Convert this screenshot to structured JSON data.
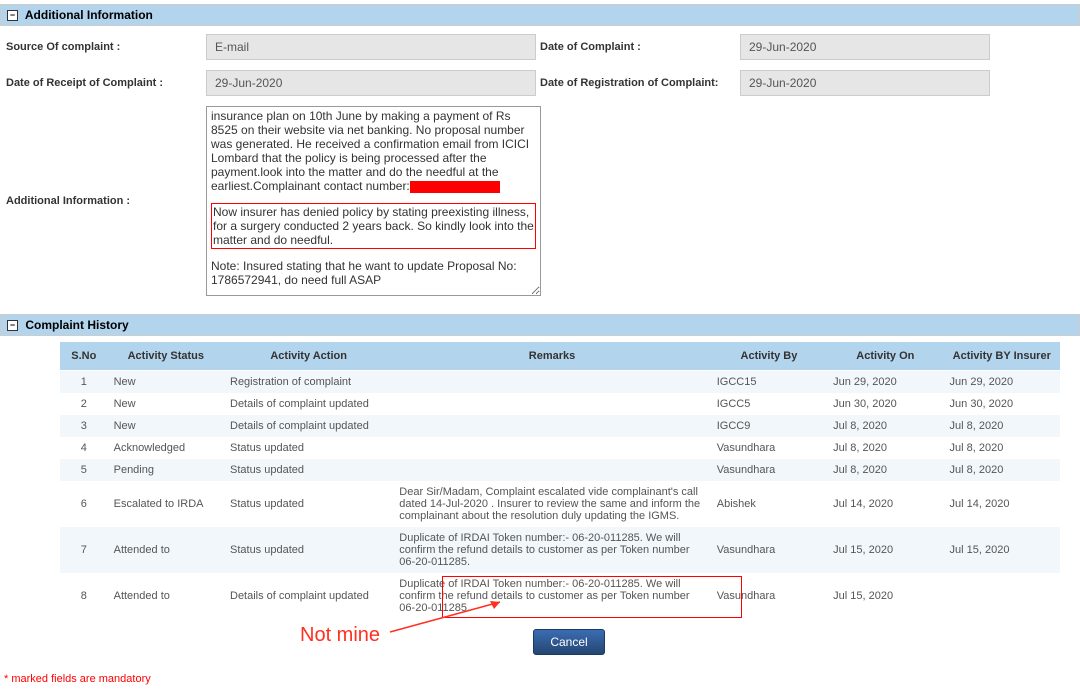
{
  "sections": {
    "additional_info_title": "Additional Information",
    "complaint_history_title": "Complaint History"
  },
  "form": {
    "source_label": "Source Of complaint :",
    "source_value": "E-mail",
    "date_complaint_label": "Date of Complaint :",
    "date_complaint_value": "29-Jun-2020",
    "date_receipt_label": "Date of Receipt of Complaint :",
    "date_receipt_value": "29-Jun-2020",
    "date_reg_label": "Date of Registration of Complaint:",
    "date_reg_value": "29-Jun-2020",
    "addl_info_label": "Additional Information :",
    "addl_text_p1": "insurance plan on 10th June by making a payment of Rs 8525 on their website via net banking. No proposal number was generated. He received a confirmation email from ICICI Lombard that the policy is being processed after the payment.look into the matter and do the needful at the earliest.Complainant contact number:",
    "addl_text_p2": "Now insurer has denied policy by stating preexisting illness, for a surgery conducted 2 years back. So kindly look into the matter and do needful.",
    "addl_text_p3": "Note: Insured stating that he want to update Proposal No: 1786572941, do need full ASAP"
  },
  "history": {
    "headers": {
      "sno": "S.No",
      "status": "Activity Status",
      "action": "Activity Action",
      "remarks": "Remarks",
      "by": "Activity By",
      "on": "Activity On",
      "by_insurer": "Activity BY Insurer"
    },
    "rows": [
      {
        "sno": "1",
        "status": "New",
        "action": "Registration of complaint",
        "remarks": "",
        "by": "IGCC15",
        "on": "Jun 29, 2020",
        "ins": "Jun 29, 2020"
      },
      {
        "sno": "2",
        "status": "New",
        "action": "Details of complaint updated",
        "remarks": "",
        "by": "IGCC5",
        "on": "Jun 30, 2020",
        "ins": "Jun 30, 2020"
      },
      {
        "sno": "3",
        "status": "New",
        "action": "Details of complaint updated",
        "remarks": "",
        "by": "IGCC9",
        "on": "Jul 8, 2020",
        "ins": "Jul 8, 2020"
      },
      {
        "sno": "4",
        "status": "Acknowledged",
        "action": "Status updated",
        "remarks": "",
        "by": "Vasundhara",
        "on": "Jul 8, 2020",
        "ins": "Jul 8, 2020"
      },
      {
        "sno": "5",
        "status": "Pending",
        "action": "Status updated",
        "remarks": "",
        "by": "Vasundhara",
        "on": "Jul 8, 2020",
        "ins": "Jul 8, 2020"
      },
      {
        "sno": "6",
        "status": "Escalated to IRDA",
        "action": "Status updated",
        "remarks": "Dear Sir/Madam, Complaint escalated vide complainant's call dated 14-Jul-2020 . Insurer to review the same and inform the complainant about the resolution duly updating the IGMS.",
        "by": "Abishek",
        "on": "Jul 14, 2020",
        "ins": "Jul 14, 2020"
      },
      {
        "sno": "7",
        "status": "Attended to",
        "action": "Status updated",
        "remarks": "Duplicate of IRDAI Token number:- 06-20-011285. We will confirm the refund details to customer as per Token number 06-20-011285.",
        "by": "Vasundhara",
        "on": "Jul 15, 2020",
        "ins": "Jul 15, 2020"
      },
      {
        "sno": "8",
        "status": "Attended to",
        "action": "Details of complaint updated",
        "remarks": "Duplicate of IRDAI Token number:- 06-20-011285. We will confirm the refund details to customer as per Token number 06-20-011285.",
        "by": "Vasundhara",
        "on": "Jul 15, 2020",
        "ins": ""
      }
    ]
  },
  "buttons": {
    "cancel": "Cancel"
  },
  "annotations": {
    "not_mine": "Not mine",
    "mandatory": "* marked fields are mandatory"
  },
  "colors": {
    "header_bg": "#b2d4ed",
    "highlight_red": "#ff0000",
    "btn_bg": "#2b5797"
  }
}
